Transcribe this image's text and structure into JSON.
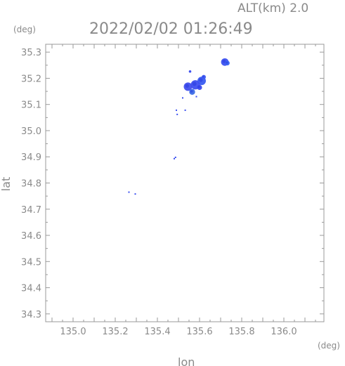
{
  "header": {
    "altitude_label": "ALT(km)  2.0",
    "timestamp": "2022/02/02 01:26:49"
  },
  "chart_data": {
    "type": "scatter",
    "title": "2022/02/02 01:26:49",
    "xlabel": "lon",
    "ylabel": "lat",
    "x_unit": "(deg)",
    "y_unit": "(deg)",
    "xlim": [
      134.87,
      136.19
    ],
    "ylim": [
      34.27,
      35.33
    ],
    "x_ticks": [
      "135.0",
      "135.2",
      "135.4",
      "135.6",
      "135.8",
      "136.0"
    ],
    "x_tick_values": [
      135.0,
      135.2,
      135.4,
      135.6,
      135.8,
      136.0
    ],
    "y_ticks": [
      "34.3",
      "34.4",
      "34.5",
      "34.6",
      "34.7",
      "34.8",
      "34.9",
      "35.0",
      "35.1",
      "35.2",
      "35.3"
    ],
    "y_tick_values": [
      34.3,
      34.4,
      34.5,
      34.6,
      34.7,
      34.8,
      34.9,
      35.0,
      35.1,
      35.2,
      35.3
    ],
    "grid": false,
    "clusters": [
      {
        "lon": 135.72,
        "lat": 35.262,
        "r": 0.018,
        "color": "#3d52f0"
      },
      {
        "lon": 135.732,
        "lat": 35.258,
        "r": 0.011,
        "color": "#3a64f2"
      },
      {
        "lon": 135.61,
        "lat": 35.19,
        "r": 0.02,
        "color": "#3a5cf0"
      },
      {
        "lon": 135.58,
        "lat": 35.175,
        "r": 0.022,
        "color": "#3d4ff0"
      },
      {
        "lon": 135.545,
        "lat": 35.168,
        "r": 0.02,
        "color": "#4250ee"
      },
      {
        "lon": 135.565,
        "lat": 35.148,
        "r": 0.014,
        "color": "#3e6ee6"
      },
      {
        "lon": 135.6,
        "lat": 35.165,
        "r": 0.012,
        "color": "#3a48ee"
      },
      {
        "lon": 135.62,
        "lat": 35.205,
        "r": 0.01,
        "color": "#3c58f2"
      },
      {
        "lon": 135.555,
        "lat": 35.226,
        "r": 0.006,
        "color": "#3d4ff0"
      }
    ],
    "points": [
      {
        "lon": 135.49,
        "lat": 35.078
      },
      {
        "lon": 135.494,
        "lat": 35.062
      },
      {
        "lon": 135.532,
        "lat": 35.078
      },
      {
        "lon": 135.52,
        "lat": 35.125
      },
      {
        "lon": 135.585,
        "lat": 35.13
      },
      {
        "lon": 135.48,
        "lat": 34.893
      },
      {
        "lon": 135.486,
        "lat": 34.898
      },
      {
        "lon": 135.265,
        "lat": 34.765
      },
      {
        "lon": 135.295,
        "lat": 34.758
      }
    ]
  }
}
